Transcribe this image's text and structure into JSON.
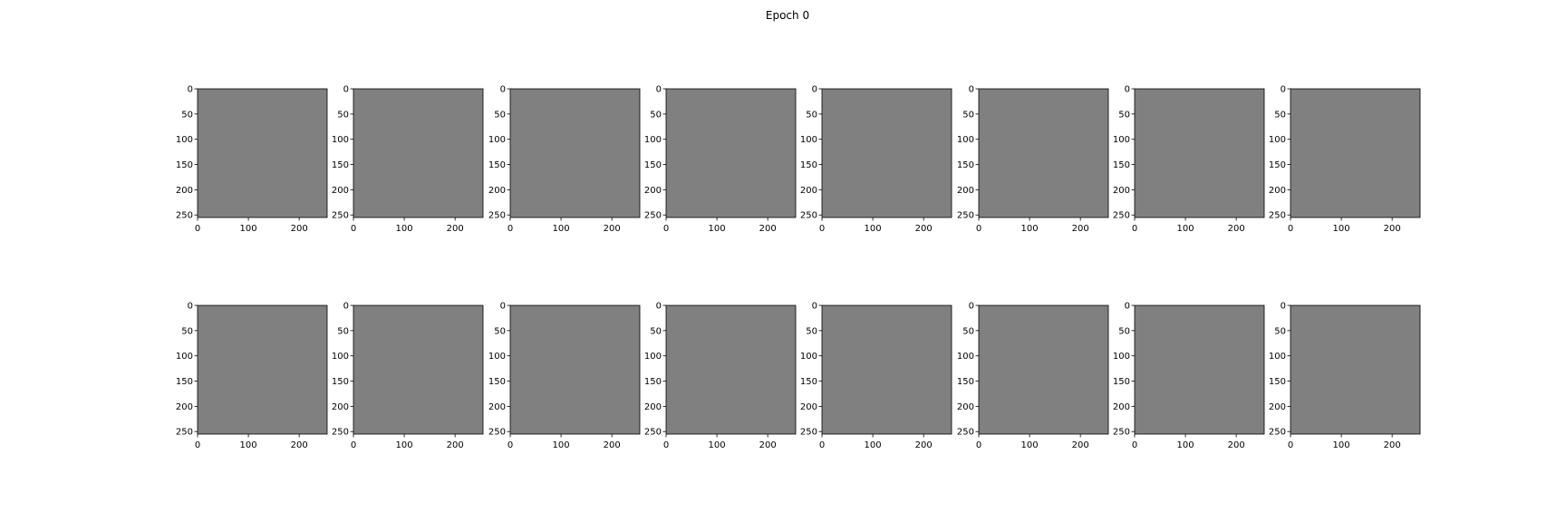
{
  "figure": {
    "title": "Epoch 0"
  },
  "chart_data": {
    "type": "heatmap",
    "rows": 2,
    "cols": 8,
    "panel_count": 16,
    "fill_color": "#808080",
    "axis_color": "#000000",
    "background": "#ffffff",
    "xlim": [
      0,
      255
    ],
    "ylim": [
      255,
      0
    ],
    "xticks": [
      0,
      100,
      200
    ],
    "yticks": [
      0,
      50,
      100,
      150,
      200,
      250
    ],
    "grid": false,
    "legend": "none"
  }
}
